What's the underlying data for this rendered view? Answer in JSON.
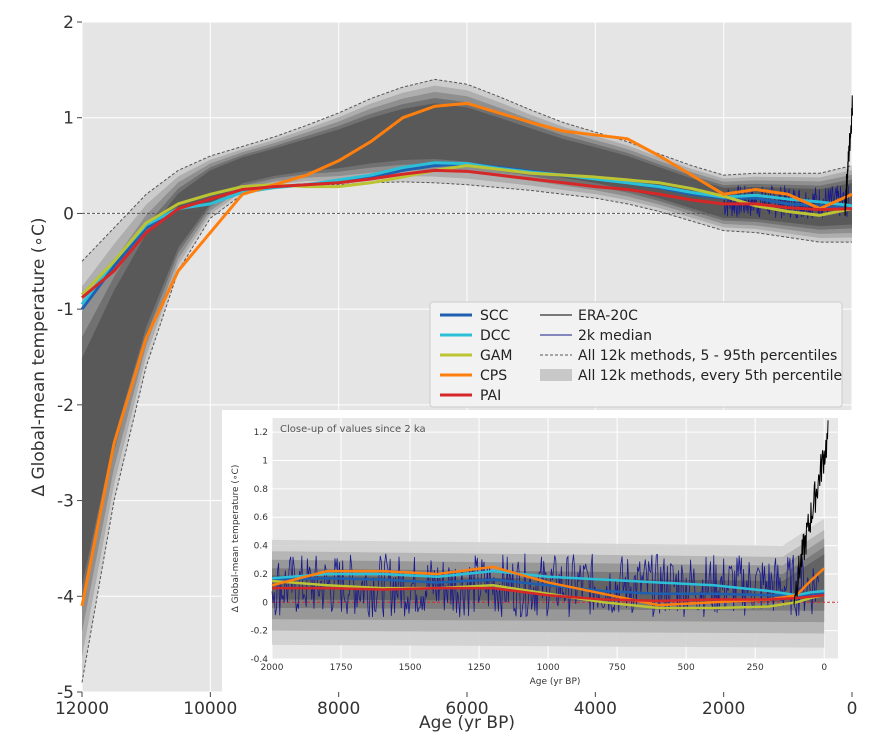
{
  "chart_data": [
    {
      "type": "line",
      "title": "",
      "xlabel": "Age (yr BP)",
      "ylabel": "Δ Global-mean temperature (∘C)",
      "xlim": [
        12000,
        0
      ],
      "ylim": [
        -5,
        2
      ],
      "x_ticks": [
        12000,
        10000,
        8000,
        6000,
        4000,
        2000,
        0
      ],
      "y_ticks": [
        -5,
        -4,
        -3,
        -2,
        -1,
        0,
        1,
        2
      ],
      "grid": true,
      "legend_position": "center-right",
      "colors": {
        "SCC": "#1f5fb0",
        "DCC": "#2cc0d8",
        "GAM": "#bcc434",
        "CPS": "#ff7f0e",
        "PAI": "#d62728",
        "ERA-20C": "#000000",
        "2k median": "#1a1a8c"
      },
      "band_5_95": {
        "x": [
          12000,
          11500,
          11000,
          10500,
          10000,
          9500,
          9000,
          8500,
          8000,
          7500,
          7000,
          6500,
          6000,
          5500,
          5000,
          4500,
          4000,
          3500,
          3000,
          2500,
          2000,
          1500,
          1000,
          500,
          0
        ],
        "lower": [
          -4.9,
          -3.0,
          -1.6,
          -0.6,
          -0.05,
          0.2,
          0.27,
          0.3,
          0.3,
          0.32,
          0.33,
          0.32,
          0.3,
          0.27,
          0.24,
          0.2,
          0.16,
          0.1,
          0.02,
          -0.08,
          -0.18,
          -0.2,
          -0.25,
          -0.3,
          -0.3
        ],
        "upper": [
          -0.5,
          -0.15,
          0.2,
          0.45,
          0.6,
          0.7,
          0.8,
          0.92,
          1.05,
          1.2,
          1.32,
          1.4,
          1.35,
          1.22,
          1.08,
          0.95,
          0.85,
          0.75,
          0.62,
          0.5,
          0.4,
          0.42,
          0.42,
          0.42,
          0.5
        ]
      },
      "series": [
        {
          "name": "SCC",
          "x": [
            12000,
            11500,
            11000,
            10500,
            10000,
            9500,
            9000,
            8500,
            8000,
            7500,
            7000,
            6500,
            6000,
            5500,
            5000,
            4500,
            4000,
            3500,
            3000,
            2500,
            2000,
            1500,
            1000,
            500,
            0
          ],
          "values": [
            -1.0,
            -0.55,
            -0.15,
            0.05,
            0.15,
            0.25,
            0.28,
            0.3,
            0.34,
            0.38,
            0.45,
            0.5,
            0.52,
            0.48,
            0.44,
            0.4,
            0.36,
            0.32,
            0.27,
            0.2,
            0.16,
            0.16,
            0.1,
            0.08,
            0.05
          ]
        },
        {
          "name": "DCC",
          "x": [
            12000,
            11500,
            11000,
            10500,
            10000,
            9500,
            9000,
            8500,
            8000,
            7500,
            7000,
            6500,
            6000,
            5500,
            5000,
            4500,
            4000,
            3500,
            3000,
            2500,
            2000,
            1500,
            1000,
            500,
            0
          ],
          "values": [
            -0.95,
            -0.5,
            -0.12,
            0.05,
            0.1,
            0.22,
            0.27,
            0.3,
            0.35,
            0.4,
            0.48,
            0.53,
            0.52,
            0.47,
            0.43,
            0.4,
            0.36,
            0.32,
            0.28,
            0.22,
            0.17,
            0.19,
            0.15,
            0.12,
            0.08
          ]
        },
        {
          "name": "GAM",
          "x": [
            12000,
            11500,
            11000,
            10500,
            10000,
            9500,
            9000,
            8500,
            8000,
            7500,
            7000,
            6500,
            6000,
            5500,
            5000,
            4500,
            4000,
            3500,
            3000,
            2500,
            2000,
            1500,
            1000,
            500,
            0
          ],
          "values": [
            -0.85,
            -0.5,
            -0.1,
            0.1,
            0.2,
            0.28,
            0.3,
            0.28,
            0.28,
            0.32,
            0.38,
            0.45,
            0.5,
            0.46,
            0.42,
            0.4,
            0.38,
            0.35,
            0.32,
            0.26,
            0.18,
            0.08,
            0.02,
            -0.02,
            0.05
          ]
        },
        {
          "name": "CPS",
          "x": [
            12000,
            11500,
            11000,
            10500,
            10000,
            9500,
            9000,
            8500,
            8000,
            7500,
            7000,
            6500,
            6000,
            5500,
            5000,
            4500,
            4000,
            3500,
            3000,
            2500,
            2000,
            1500,
            1000,
            500,
            0
          ],
          "values": [
            -4.1,
            -2.4,
            -1.3,
            -0.6,
            -0.2,
            0.2,
            0.3,
            0.4,
            0.55,
            0.75,
            1.0,
            1.12,
            1.15,
            1.05,
            0.95,
            0.86,
            0.82,
            0.78,
            0.6,
            0.4,
            0.2,
            0.25,
            0.2,
            0.05,
            0.2
          ]
        },
        {
          "name": "PAI",
          "x": [
            12000,
            11500,
            11000,
            10500,
            10000,
            9500,
            9000,
            8500,
            8000,
            7500,
            7000,
            6500,
            6000,
            5500,
            5000,
            4500,
            4000,
            3500,
            3000,
            2500,
            2000,
            1500,
            1000,
            500,
            0
          ],
          "values": [
            -0.88,
            -0.6,
            -0.2,
            0.05,
            0.15,
            0.25,
            0.28,
            0.3,
            0.32,
            0.36,
            0.41,
            0.45,
            0.44,
            0.4,
            0.36,
            0.32,
            0.28,
            0.25,
            0.2,
            0.14,
            0.1,
            0.1,
            0.06,
            0.04,
            0.05
          ]
        }
      ],
      "legend": {
        "col1": [
          "SCC",
          "DCC",
          "GAM",
          "CPS",
          "PAI"
        ],
        "col2": [
          "ERA-20C",
          "2k median",
          "All 12k methods, 5 - 95th percentiles",
          "All 12k methods, every 5th percentile"
        ]
      }
    },
    {
      "type": "line",
      "title": "Close-up of values since 2 ka",
      "xlabel": "Age (yr BP)",
      "ylabel": "Δ Global-mean temperature (∘C)",
      "xlim": [
        2000,
        -50
      ],
      "ylim": [
        -0.4,
        1.3
      ],
      "x_ticks": [
        2000,
        1750,
        1500,
        1250,
        1000,
        750,
        500,
        250,
        0
      ],
      "y_ticks": [
        -0.4,
        -0.2,
        0.0,
        0.2,
        0.4,
        0.6,
        0.8,
        1.0,
        1.2
      ],
      "grid": true,
      "series": [
        {
          "name": "SCC",
          "x": [
            2000,
            1800,
            1600,
            1400,
            1200,
            1000,
            800,
            600,
            400,
            200,
            100,
            50,
            0
          ],
          "values": [
            0.16,
            0.17,
            0.16,
            0.14,
            0.16,
            0.12,
            0.08,
            0.06,
            0.06,
            0.05,
            0.05,
            0.05,
            0.06
          ]
        },
        {
          "name": "DCC",
          "x": [
            2000,
            1800,
            1600,
            1400,
            1200,
            1000,
            800,
            600,
            400,
            200,
            100,
            50,
            0
          ],
          "values": [
            0.17,
            0.2,
            0.2,
            0.18,
            0.22,
            0.18,
            0.16,
            0.14,
            0.12,
            0.08,
            0.05,
            0.07,
            0.08
          ]
        },
        {
          "name": "GAM",
          "x": [
            2000,
            1800,
            1600,
            1400,
            1200,
            1000,
            800,
            600,
            400,
            200,
            100,
            50,
            0
          ],
          "values": [
            0.15,
            0.12,
            0.1,
            0.1,
            0.12,
            0.06,
            0.0,
            -0.04,
            -0.04,
            -0.03,
            0.0,
            0.03,
            0.05
          ]
        },
        {
          "name": "CPS",
          "x": [
            2000,
            1800,
            1600,
            1400,
            1200,
            1000,
            800,
            600,
            400,
            200,
            100,
            50,
            0
          ],
          "values": [
            0.12,
            0.22,
            0.22,
            0.2,
            0.25,
            0.14,
            0.06,
            -0.02,
            0.0,
            0.02,
            0.05,
            0.15,
            0.24
          ]
        },
        {
          "name": "PAI",
          "x": [
            2000,
            1800,
            1600,
            1400,
            1200,
            1000,
            800,
            600,
            400,
            200,
            100,
            50,
            0
          ],
          "values": [
            0.1,
            0.1,
            0.09,
            0.1,
            0.1,
            0.05,
            0.02,
            0.01,
            0.02,
            0.02,
            0.03,
            0.04,
            0.05
          ]
        }
      ]
    }
  ]
}
